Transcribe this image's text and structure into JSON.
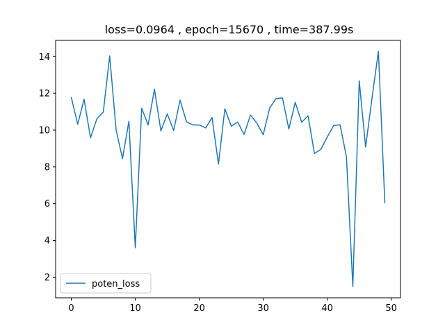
{
  "chart_data": {
    "type": "line",
    "title": "loss=0.0964 , epoch=15670 , time=387.99s",
    "xlabel": "",
    "ylabel": "",
    "xlim": [
      -2.45,
      51.45
    ],
    "ylim": [
      0.88,
      14.88
    ],
    "xticks": [
      0,
      10,
      20,
      30,
      40,
      50
    ],
    "yticks": [
      2,
      4,
      6,
      8,
      10,
      12,
      14
    ],
    "grid": false,
    "legend_position": "lower-left",
    "series": [
      {
        "name": "poten_loss",
        "color": "#1f77b4",
        "x": [
          0,
          1,
          2,
          3,
          4,
          5,
          6,
          7,
          8,
          9,
          10,
          11,
          12,
          13,
          14,
          15,
          16,
          17,
          18,
          19,
          20,
          21,
          22,
          23,
          24,
          25,
          26,
          27,
          28,
          29,
          30,
          31,
          32,
          33,
          34,
          35,
          36,
          37,
          38,
          39,
          40,
          41,
          42,
          43,
          44,
          45,
          46,
          47,
          48,
          49
        ],
        "values": [
          11.78,
          10.32,
          11.68,
          9.58,
          10.62,
          10.98,
          14.04,
          10.02,
          8.45,
          10.48,
          3.6,
          11.19,
          10.28,
          12.22,
          9.96,
          10.88,
          9.98,
          11.63,
          10.45,
          10.28,
          10.28,
          10.12,
          10.68,
          8.15,
          11.16,
          10.21,
          10.44,
          9.76,
          10.82,
          10.38,
          9.75,
          11.2,
          11.71,
          11.75,
          10.06,
          11.51,
          10.43,
          10.78,
          8.73,
          8.95,
          9.62,
          10.25,
          10.29,
          8.55,
          1.5,
          12.68,
          9.08,
          11.75,
          14.29,
          6.05
        ]
      }
    ]
  }
}
